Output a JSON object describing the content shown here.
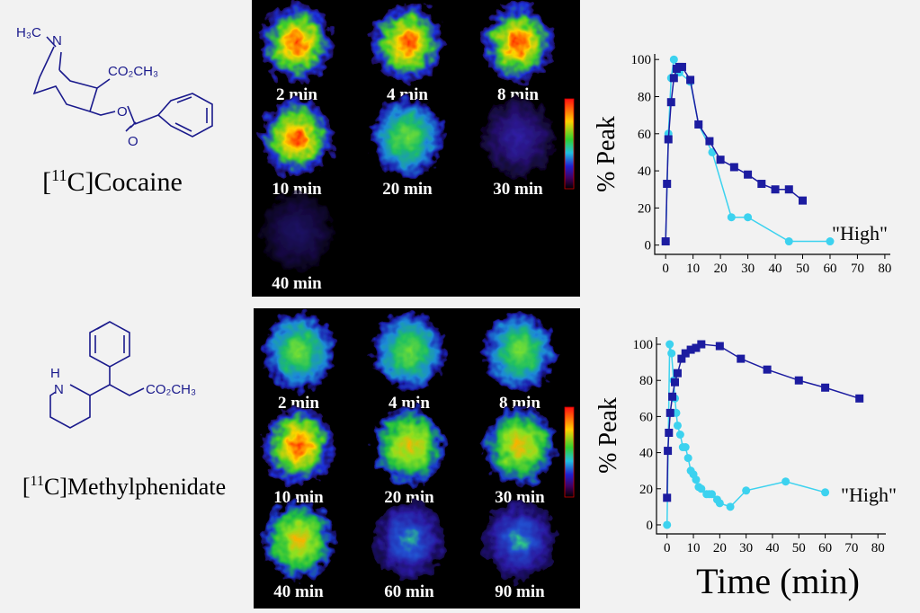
{
  "structures": [
    {
      "labels": [
        "H₃C",
        "N",
        "CO₂CH₃",
        "O",
        "O"
      ],
      "name": {
        "open": "[",
        "isotope": "11",
        "rest": "C]Cocaine"
      }
    },
    {
      "labels": [
        "H",
        "N",
        "CO₂CH₃"
      ],
      "name": {
        "open": "[",
        "isotope": "11",
        "rest": "C]Methylphenidate"
      }
    }
  ],
  "pet_images": [
    {
      "labels": [
        "2 min",
        "4 min",
        "8 min",
        "10 min",
        "20 min",
        "30 min",
        "40 min"
      ]
    },
    {
      "labels": [
        "2 min",
        "4 min",
        "8 min",
        "10 min",
        "20 min",
        "30 min",
        "40 min",
        "60 min",
        "90 min"
      ]
    }
  ],
  "chart_data": [
    {
      "type": "line",
      "ylabel": "% Peak",
      "annotation": "\"High\"",
      "xlim": [
        -4,
        82
      ],
      "ylim": [
        -5,
        103
      ],
      "xticks": [
        0,
        10,
        20,
        30,
        40,
        50,
        60,
        70,
        80
      ],
      "yticks": [
        0,
        20,
        40,
        60,
        80,
        100
      ],
      "series": [
        {
          "color": "#1c1ca0",
          "marker": "square",
          "x": [
            0,
            0.5,
            1,
            2,
            3,
            4,
            5,
            6,
            9,
            12,
            16,
            20,
            25,
            30,
            35,
            40,
            45,
            50
          ],
          "values": [
            2,
            33,
            57,
            77,
            90,
            95,
            96,
            96,
            89,
            65,
            56,
            46,
            42,
            38,
            33,
            30,
            30,
            24
          ]
        },
        {
          "color": "#3cd2ef",
          "marker": "circle",
          "x": [
            0,
            1,
            2,
            3,
            5,
            9,
            12,
            17,
            24,
            30,
            45,
            60
          ],
          "values": [
            2,
            60,
            90,
            100,
            93,
            88,
            65,
            50,
            15,
            15,
            2,
            2
          ]
        }
      ]
    },
    {
      "type": "line",
      "ylabel": "% Peak",
      "xlabel": "Time (min)",
      "annotation": "\"High\"",
      "xlim": [
        -4,
        83
      ],
      "ylim": [
        -5,
        104
      ],
      "xticks": [
        0,
        10,
        20,
        30,
        40,
        50,
        60,
        70,
        80
      ],
      "yticks": [
        0,
        20,
        40,
        60,
        80,
        100
      ],
      "series": [
        {
          "color": "#1c1ca0",
          "marker": "square",
          "x": [
            0,
            0.3,
            0.7,
            1.2,
            2,
            3,
            4,
            5.5,
            7,
            9,
            11,
            13,
            20,
            28,
            38,
            50,
            60,
            73
          ],
          "values": [
            15,
            41,
            51,
            62,
            71,
            79,
            84,
            92,
            95,
            97,
            98,
            100,
            99,
            92,
            86,
            80,
            76,
            70
          ]
        },
        {
          "color": "#3cd2ef",
          "marker": "circle",
          "x": [
            0,
            1,
            1.7,
            2.5,
            3,
            3.5,
            4,
            5,
            6,
            7,
            8,
            9,
            10,
            11,
            12,
            13,
            15,
            16,
            17,
            19,
            20,
            24,
            30,
            45,
            60
          ],
          "values": [
            0,
            100,
            95,
            80,
            70,
            62,
            55,
            50,
            43,
            43,
            37,
            30,
            28,
            25,
            21,
            20,
            17,
            17,
            17,
            14,
            12,
            10,
            19,
            24,
            18
          ]
        }
      ]
    }
  ]
}
